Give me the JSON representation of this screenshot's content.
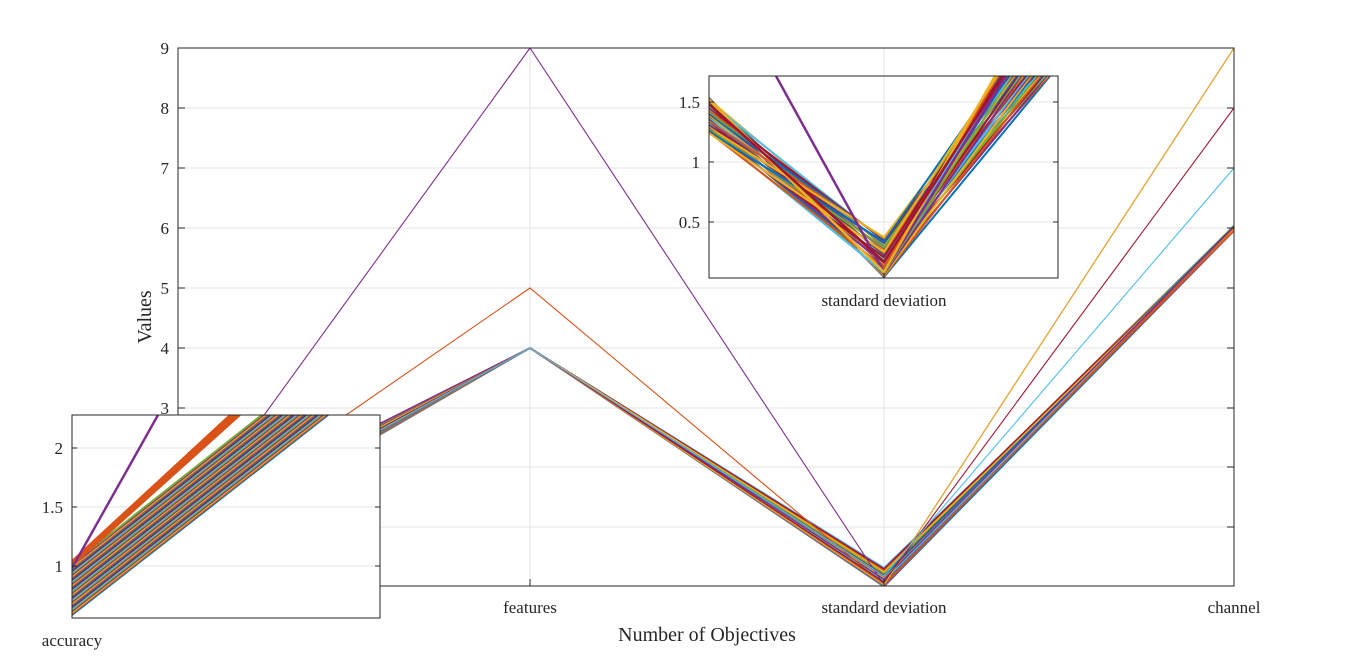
{
  "chart_data": [
    {
      "type": "line",
      "subtype": "parallel-coordinates",
      "xlabel": "Number of Objectives",
      "ylabel": "Values",
      "categories": [
        "accuracy",
        "features",
        "standard deviation",
        "channel"
      ],
      "ylim": [
        0,
        9
      ],
      "yticks": [
        9,
        8,
        7,
        6,
        5,
        4,
        3
      ],
      "grid": true,
      "series_profiles": [
        {
          "values": [
            0.9,
            9,
            0.05,
            9
          ],
          "color": "#7E2F8E"
        },
        {
          "values": [
            0.95,
            5,
            0.05,
            8
          ],
          "color": "#D95319"
        },
        {
          "values": [
            0.9,
            4,
            0.05,
            9
          ],
          "color": "#EDB120"
        },
        {
          "values": [
            0.85,
            4,
            0.1,
            8
          ],
          "color": "#A2142F"
        },
        {
          "values": [
            0.8,
            4,
            0.2,
            7
          ],
          "color": "#4DBEEE"
        },
        {
          "values": [
            0.9,
            4,
            0.3,
            6
          ],
          "color": "#77AC30"
        },
        {
          "values": [
            0.85,
            4,
            0.25,
            6
          ],
          "color": "#0072BD"
        },
        {
          "values": [
            0.8,
            4,
            0.2,
            6
          ],
          "color": "#D95319"
        },
        {
          "values": [
            0.75,
            4,
            0.15,
            6
          ],
          "color": "#7E2F8E"
        },
        {
          "values": [
            0.7,
            4,
            0.1,
            6
          ],
          "color": "#A2142F"
        },
        {
          "values": [
            0.65,
            4,
            0.05,
            6
          ],
          "color": "#4DBEEE"
        },
        {
          "values": [
            0.6,
            4,
            0.02,
            6
          ],
          "color": "#77AC30"
        }
      ]
    },
    {
      "type": "line",
      "role": "inset-zoom",
      "xlabel": "accuracy",
      "yticks": [
        2,
        1.5,
        1
      ],
      "ylim": [
        0.6,
        2.3
      ],
      "grid": true
    },
    {
      "type": "line",
      "role": "inset-zoom",
      "xlabel": "standard deviation",
      "yticks": [
        1.5,
        1,
        0.5
      ],
      "ylim": [
        0,
        1.75
      ],
      "grid": true
    }
  ]
}
